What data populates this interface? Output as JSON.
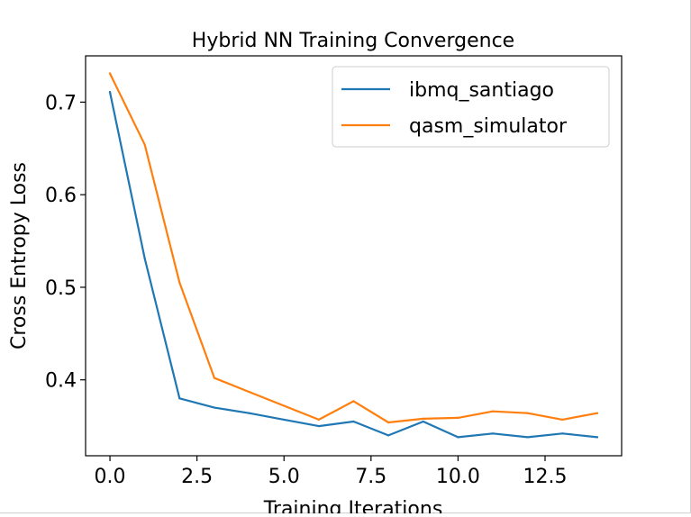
{
  "chart_data": {
    "type": "line",
    "title": "Hybrid NN Training Convergence",
    "xlabel": "Training Iterations",
    "ylabel": "Cross Entropy Loss",
    "xlim": [
      -0.7,
      14.7
    ],
    "ylim": [
      0.318,
      0.75
    ],
    "xticks": [
      0.0,
      2.5,
      5.0,
      7.5,
      10.0,
      12.5
    ],
    "xtick_labels": [
      "0.0",
      "2.5",
      "5.0",
      "7.5",
      "10.0",
      "12.5"
    ],
    "yticks": [
      0.4,
      0.5,
      0.6,
      0.7
    ],
    "ytick_labels": [
      "0.4",
      "0.5",
      "0.6",
      "0.7"
    ],
    "grid": false,
    "legend_position": "top-right",
    "series": [
      {
        "name": "ibmq_santiago",
        "color": "#1f77b4",
        "x": [
          0,
          1,
          2,
          3,
          4,
          5,
          6,
          7,
          8,
          9,
          10,
          11,
          12,
          13,
          14
        ],
        "values": [
          0.711,
          0.531,
          0.38,
          0.37,
          0.364,
          0.357,
          0.35,
          0.355,
          0.34,
          0.355,
          0.338,
          0.342,
          0.338,
          0.342,
          0.338
        ]
      },
      {
        "name": "qasm_simulator",
        "color": "#ff7f0e",
        "x": [
          0,
          1,
          2,
          3,
          4,
          5,
          6,
          7,
          8,
          9,
          10,
          11,
          12,
          13,
          14
        ],
        "values": [
          0.731,
          0.654,
          0.505,
          0.402,
          0.387,
          0.372,
          0.357,
          0.377,
          0.354,
          0.358,
          0.359,
          0.366,
          0.364,
          0.357,
          0.364
        ]
      }
    ]
  }
}
